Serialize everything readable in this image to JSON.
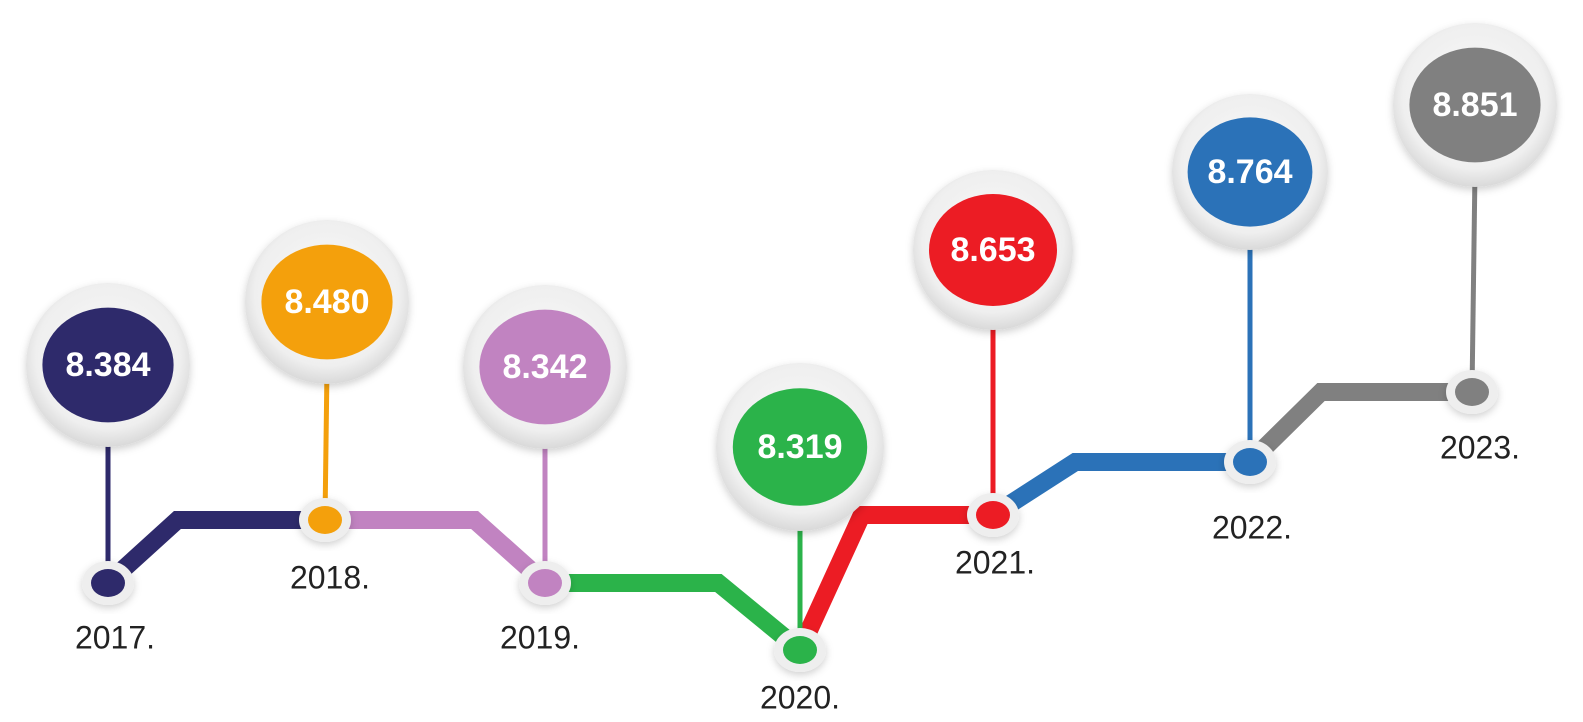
{
  "nodes": [
    {
      "year": "2017.",
      "value": "8.384",
      "color": "#2e2a6b"
    },
    {
      "year": "2018.",
      "value": "8.480",
      "color": "#f4a00c"
    },
    {
      "year": "2019.",
      "value": "8.342",
      "color": "#c183c1"
    },
    {
      "year": "2020.",
      "value": "8.319",
      "color": "#2bb34a"
    },
    {
      "year": "2021.",
      "value": "8.653",
      "color": "#ec1c24"
    },
    {
      "year": "2022.",
      "value": "8.764",
      "color": "#2b72b8"
    },
    {
      "year": "2023.",
      "value": "8.851",
      "color": "#808080"
    }
  ]
}
